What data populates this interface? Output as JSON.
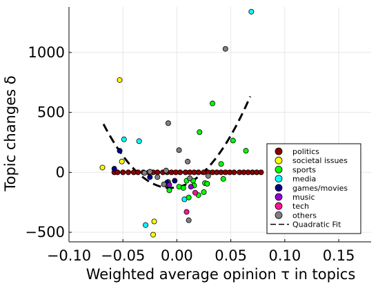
{
  "chart_data": {
    "type": "scatter",
    "xlabel": "Weighted average opinion τ in topics",
    "ylabel": "Topic changes δ",
    "xlim": [
      -0.1,
      0.18
    ],
    "ylim": [
      -580,
      1380
    ],
    "xticks": [
      -0.1,
      -0.05,
      0.0,
      0.05,
      0.1,
      0.15
    ],
    "xtick_labels": [
      "−0.10",
      "−0.05",
      "0.00",
      "0.05",
      "0.10",
      "0.15"
    ],
    "yticks": [
      -500,
      0,
      500,
      1000
    ],
    "ytick_labels": [
      "−500",
      "0",
      "500",
      "1000"
    ],
    "grid": true,
    "legend_position": "bottom-right",
    "series": [
      {
        "name": "politics",
        "color": "#8b0000",
        "points": [
          [
            -0.058,
            0
          ],
          [
            -0.055,
            0
          ],
          [
            -0.05,
            0
          ],
          [
            -0.045,
            0
          ],
          [
            -0.04,
            0
          ],
          [
            -0.036,
            0
          ],
          [
            -0.031,
            0
          ],
          [
            -0.026,
            0
          ],
          [
            -0.022,
            0
          ],
          [
            -0.018,
            0
          ],
          [
            -0.013,
            0
          ],
          [
            -0.009,
            0
          ],
          [
            -0.005,
            0
          ],
          [
            -0.001,
            0
          ],
          [
            0.003,
            0
          ],
          [
            0.008,
            0
          ],
          [
            0.012,
            0
          ],
          [
            0.016,
            0
          ],
          [
            0.02,
            0
          ],
          [
            0.025,
            0
          ],
          [
            0.029,
            0
          ],
          [
            0.033,
            0
          ],
          [
            0.037,
            0
          ],
          [
            0.041,
            0
          ],
          [
            0.045,
            0
          ],
          [
            0.049,
            0
          ],
          [
            0.053,
            0
          ],
          [
            0.058,
            0
          ],
          [
            0.062,
            0
          ],
          [
            0.066,
            0
          ],
          [
            0.07,
            0
          ],
          [
            0.074,
            0
          ],
          [
            0.078,
            0
          ]
        ]
      },
      {
        "name": "societal issues",
        "color": "#ffff00",
        "points": [
          [
            -0.069,
            40
          ],
          [
            -0.053,
            770
          ],
          [
            -0.051,
            90
          ],
          [
            -0.021,
            -410
          ],
          [
            -0.022,
            -520
          ]
        ]
      },
      {
        "name": "sports",
        "color": "#00ff00",
        "points": [
          [
            0.033,
            575
          ],
          [
            0.021,
            335
          ],
          [
            0.052,
            265
          ],
          [
            0.064,
            180
          ],
          [
            0.041,
            70
          ],
          [
            0.043,
            -55
          ],
          [
            0.026,
            -90
          ],
          [
            0.028,
            -95
          ],
          [
            0.015,
            -70
          ],
          [
            0.016,
            -110
          ],
          [
            0.025,
            -165
          ],
          [
            0.02,
            -190
          ],
          [
            0.011,
            -210
          ],
          [
            -0.008,
            -80
          ],
          [
            -0.011,
            -100
          ],
          [
            -0.007,
            -150
          ],
          [
            0.002,
            -120
          ],
          [
            0.006,
            -130
          ],
          [
            0.009,
            -70
          ]
        ]
      },
      {
        "name": "media",
        "color": "#00ffff",
        "points": [
          [
            0.069,
            1340
          ],
          [
            -0.049,
            275
          ],
          [
            -0.035,
            260
          ],
          [
            -0.029,
            -440
          ],
          [
            0.007,
            -225
          ]
        ]
      },
      {
        "name": "games/movies",
        "color": "#00008b",
        "points": [
          [
            -0.053,
            180
          ],
          [
            -0.058,
            30
          ],
          [
            -0.025,
            -40
          ],
          [
            -0.002,
            -70
          ],
          [
            -0.009,
            -85
          ]
        ]
      },
      {
        "name": "music",
        "color": "#9400d3",
        "points": [
          [
            -0.007,
            -105
          ],
          [
            0.013,
            -120
          ]
        ]
      },
      {
        "name": "tech",
        "color": "#ff1493",
        "points": [
          [
            0.009,
            -330
          ],
          [
            0.017,
            -170
          ]
        ]
      },
      {
        "name": "others",
        "color": "#808080",
        "points": [
          [
            0.045,
            1030
          ],
          [
            -0.008,
            410
          ],
          [
            0.002,
            185
          ],
          [
            0.01,
            90
          ],
          [
            -0.03,
            -5
          ],
          [
            -0.025,
            5
          ],
          [
            -0.01,
            15
          ],
          [
            -0.018,
            -40
          ],
          [
            -0.012,
            -100
          ],
          [
            0.011,
            -400
          ],
          [
            0.012,
            -50
          ],
          [
            0.029,
            -30
          ]
        ]
      }
    ],
    "fit": {
      "name": "Quadratic Fit",
      "style": "dashed",
      "color": "#000000",
      "x_range": [
        -0.068,
        0.068
      ],
      "coefficients_a_b_c": [
        139000,
        1700,
        -125
      ]
    }
  }
}
